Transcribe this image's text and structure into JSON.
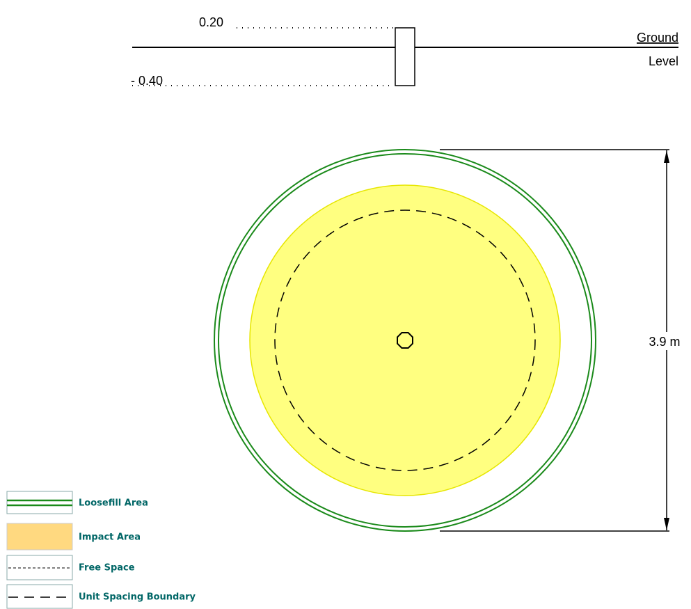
{
  "elevation": {
    "top_label": "0.20",
    "bottom_label": "- 0.40",
    "ground_label": "Ground",
    "level_label": "Level"
  },
  "plan": {
    "dimension_label": "3.9 m"
  },
  "legend": {
    "items": [
      "Loosefill Area",
      "Impact Area",
      "Free Space",
      "Unit Spacing Boundary"
    ]
  }
}
